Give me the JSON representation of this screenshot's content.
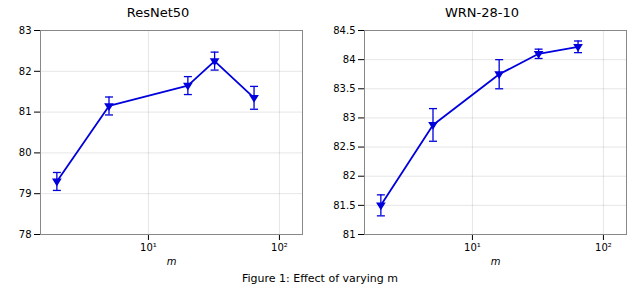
{
  "chart_data": [
    {
      "type": "line",
      "title": "ResNet50",
      "x": [
        2,
        5,
        20,
        32,
        64
      ],
      "values": [
        79.3,
        81.15,
        81.65,
        82.25,
        81.35
      ],
      "yerr": [
        0.22,
        0.22,
        0.22,
        0.22,
        0.28
      ],
      "color": "#0000dd",
      "marker": "triangle-down",
      "xlabel": "m",
      "log": "x",
      "xlim": [
        1.5,
        150
      ],
      "xticks": [
        {
          "value": 10,
          "label": "10¹"
        },
        {
          "value": 100,
          "label": "10²"
        }
      ],
      "ylim": [
        78,
        83
      ],
      "yticks": [
        78,
        79,
        80,
        81,
        82,
        83
      ],
      "grid": true
    },
    {
      "type": "line",
      "title": "WRN-28-10",
      "x": [
        2,
        5,
        16,
        32,
        64
      ],
      "values": [
        81.5,
        82.88,
        83.75,
        84.1,
        84.22
      ],
      "yerr": [
        0.18,
        0.28,
        0.25,
        0.08,
        0.1
      ],
      "color": "#0000dd",
      "marker": "triangle-down",
      "xlabel": "m",
      "log": "x",
      "xlim": [
        1.5,
        150
      ],
      "xticks": [
        {
          "value": 10,
          "label": "10¹"
        },
        {
          "value": 100,
          "label": "10²"
        }
      ],
      "ylim": [
        81,
        84.5
      ],
      "yticks": [
        81,
        81.5,
        82,
        82.5,
        83,
        83.5,
        84,
        84.5
      ],
      "grid": true
    }
  ],
  "caption": "Figure 1: Effect of varying m"
}
